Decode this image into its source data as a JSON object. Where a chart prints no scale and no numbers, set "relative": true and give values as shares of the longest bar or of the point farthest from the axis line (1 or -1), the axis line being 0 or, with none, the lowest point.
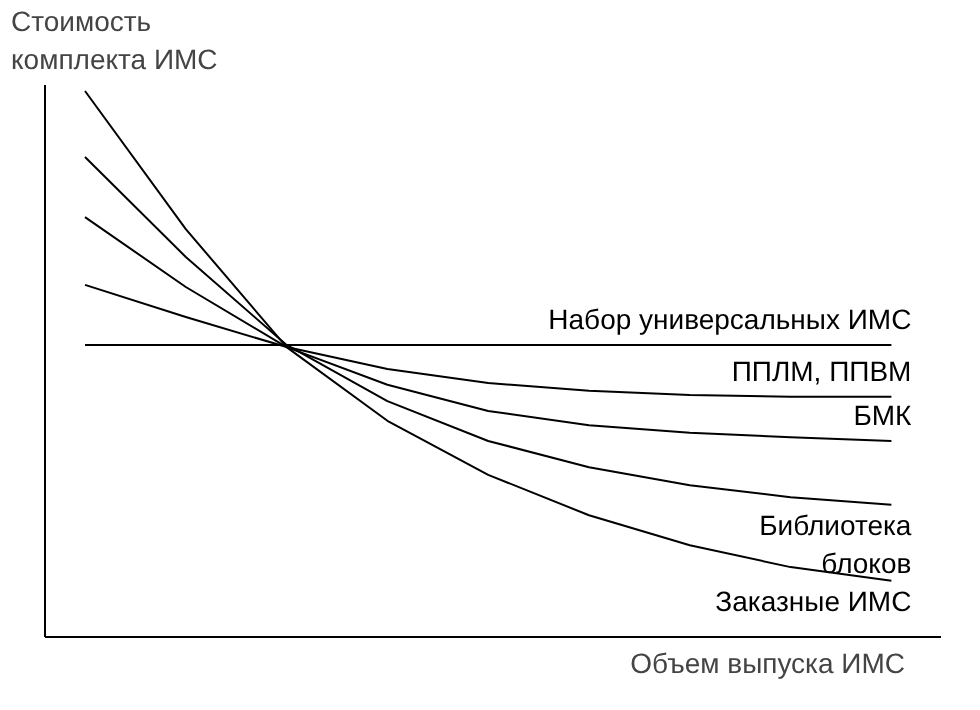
{
  "chart_data": {
    "type": "line",
    "relative": true,
    "xlabel": "Объем выпуска ИМС",
    "ylabel": "Стоимость\nкомплекта ИМС",
    "categories": [
      null,
      null,
      null,
      null,
      null,
      null,
      null,
      null,
      null
    ],
    "marker": "none",
    "line_style": "solid",
    "tick_labels": false,
    "series": [
      {
        "name": "Набор универсальных ИМС",
        "color": "#000000",
        "values": [
          0.535,
          0.535,
          0.535,
          0.535,
          0.535,
          0.535,
          0.535,
          0.535,
          0.535
        ]
      },
      {
        "name": "ППЛМ, ППВМ",
        "color": "#000000",
        "values": [
          0.645,
          0.586,
          0.531,
          0.491,
          0.465,
          0.451,
          0.443,
          0.44,
          0.44
        ]
      },
      {
        "name": "БМК",
        "color": "#000000",
        "values": [
          0.769,
          0.641,
          0.531,
          0.462,
          0.414,
          0.388,
          0.374,
          0.366,
          0.359
        ]
      },
      {
        "name": "Библиотека\nблоков",
        "color": "#000000",
        "values": [
          0.879,
          0.696,
          0.535,
          0.432,
          0.359,
          0.311,
          0.278,
          0.256,
          0.242
        ]
      },
      {
        "name": "Заказные ИМС",
        "color": "#000000",
        "values": [
          1,
          0.747,
          0.531,
          0.396,
          0.297,
          0.223,
          0.168,
          0.128,
          0.103
        ]
      }
    ]
  }
}
